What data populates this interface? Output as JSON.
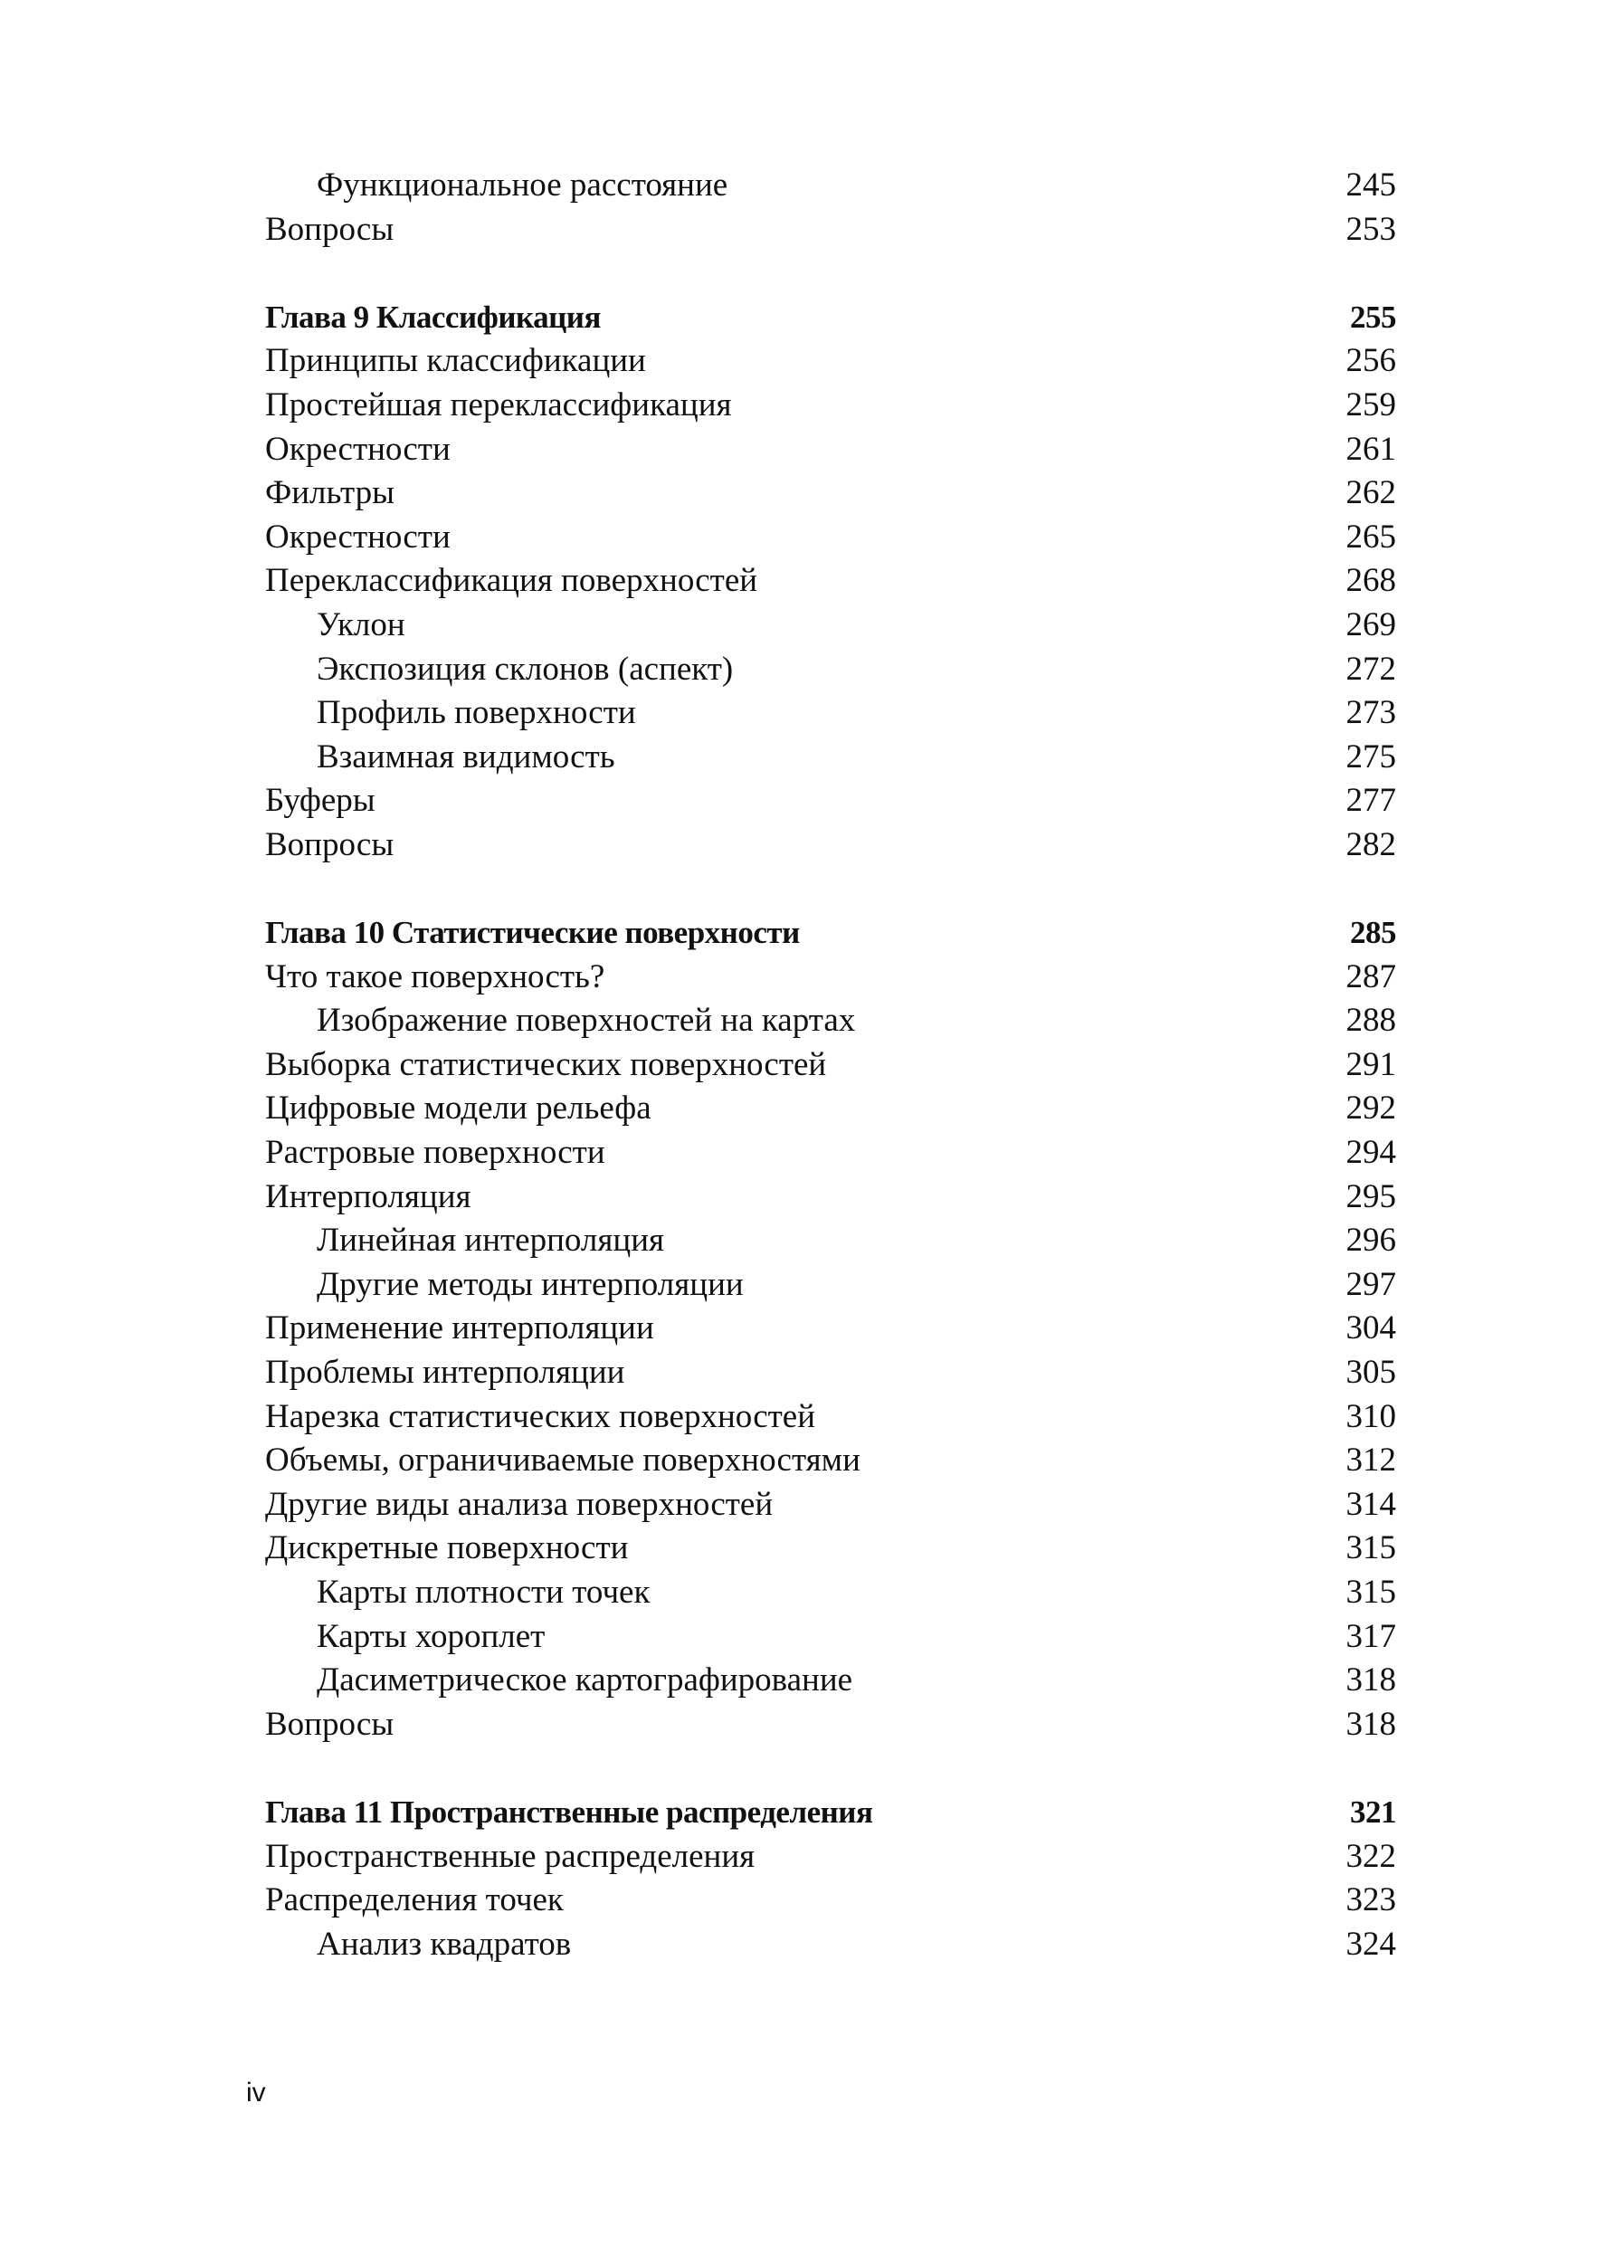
{
  "sections": [
    {
      "entries": [
        {
          "title": "Функциональное расстояние",
          "page": "245",
          "level": 2
        },
        {
          "title": "Вопросы",
          "page": "253",
          "level": 1
        }
      ]
    },
    {
      "entries": [
        {
          "title": "Глава 9 Классификация",
          "page": "255",
          "level": 0
        },
        {
          "title": "Принципы классификации",
          "page": "256",
          "level": 1
        },
        {
          "title": "Простейшая переклассификация",
          "page": "259",
          "level": 1
        },
        {
          "title": "Окрестности",
          "page": "261",
          "level": 1
        },
        {
          "title": "Фильтры",
          "page": "262",
          "level": 1
        },
        {
          "title": "Окрестности",
          "page": "265",
          "level": 1
        },
        {
          "title": "Переклассификация поверхностей",
          "page": "268",
          "level": 1
        },
        {
          "title": "Уклон",
          "page": "269",
          "level": 2
        },
        {
          "title": "Экспозиция склонов (аспект)",
          "page": "272",
          "level": 2
        },
        {
          "title": "Профиль поверхности",
          "page": "273",
          "level": 2
        },
        {
          "title": "Взаимная видимость",
          "page": "275",
          "level": 2
        },
        {
          "title": "Буферы",
          "page": "277",
          "level": 1
        },
        {
          "title": "Вопросы",
          "page": "282",
          "level": 1
        }
      ]
    },
    {
      "entries": [
        {
          "title": "Глава 10 Статистические поверхности",
          "page": "285",
          "level": 0
        },
        {
          "title": "Что такое поверхность?",
          "page": "287",
          "level": 1
        },
        {
          "title": "Изображение поверхностей на картах",
          "page": "288",
          "level": 2
        },
        {
          "title": "Выборка статистических поверхностей",
          "page": "291",
          "level": 1
        },
        {
          "title": "Цифровые модели рельефа",
          "page": "292",
          "level": 1
        },
        {
          "title": "Растровые поверхности",
          "page": "294",
          "level": 1
        },
        {
          "title": "Интерполяция",
          "page": "295",
          "level": 1
        },
        {
          "title": "Линейная интерполяция",
          "page": "296",
          "level": 2
        },
        {
          "title": "Другие методы интерполяции",
          "page": "297",
          "level": 2
        },
        {
          "title": "Применение интерполяции",
          "page": "304",
          "level": 1
        },
        {
          "title": "Проблемы интерполяции",
          "page": "305",
          "level": 1
        },
        {
          "title": "Нарезка статистических поверхностей",
          "page": "310",
          "level": 1
        },
        {
          "title": "Объемы, ограничиваемые поверхностями",
          "page": "312",
          "level": 1
        },
        {
          "title": "Другие виды анализа поверхностей",
          "page": "314",
          "level": 1
        },
        {
          "title": "Дискретные поверхности",
          "page": "315",
          "level": 1
        },
        {
          "title": "Карты плотности точек",
          "page": "315",
          "level": 2
        },
        {
          "title": "Карты хороплет",
          "page": "317",
          "level": 2
        },
        {
          "title": "Дасиметрическое картографирование",
          "page": "318",
          "level": 2
        },
        {
          "title": "Вопросы",
          "page": "318",
          "level": 1
        }
      ]
    },
    {
      "entries": [
        {
          "title": "Глава 11 Пространственные распределения",
          "page": "321",
          "level": 0
        },
        {
          "title": "Пространственные распределения",
          "page": "322",
          "level": 1
        },
        {
          "title": "Распределения точек",
          "page": "323",
          "level": 1
        },
        {
          "title": "Анализ квадратов",
          "page": "324",
          "level": 2
        }
      ]
    }
  ],
  "folio": "iv"
}
